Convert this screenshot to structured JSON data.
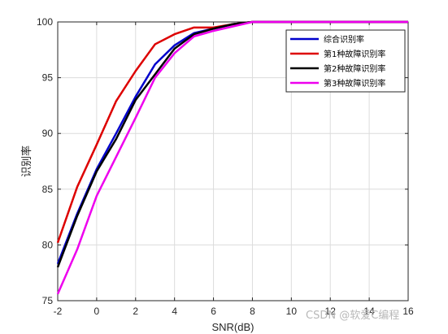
{
  "chart_data": {
    "type": "line",
    "title": "",
    "xlabel": "SNR(dB)",
    "ylabel": "识别率",
    "xlim": [
      -2,
      16
    ],
    "ylim": [
      75,
      100
    ],
    "xticks": [
      -2,
      0,
      2,
      4,
      6,
      8,
      10,
      12,
      14,
      16
    ],
    "yticks": [
      75,
      80,
      85,
      90,
      95,
      100
    ],
    "grid": true,
    "legend_position": "top-right",
    "x": [
      -2,
      -1,
      0,
      1,
      2,
      3,
      4,
      5,
      6,
      7,
      8,
      9,
      10,
      11,
      12,
      13,
      14,
      15,
      16
    ],
    "series": [
      {
        "name": "综合识别率",
        "color": "#0000cc",
        "values": [
          78.3,
          82.8,
          86.8,
          90.0,
          93.3,
          96.2,
          97.9,
          99.0,
          99.4,
          99.8,
          100,
          100,
          100,
          100,
          100,
          100,
          100,
          100,
          100
        ]
      },
      {
        "name": "第1种故障识别率",
        "color": "#dd0000",
        "values": [
          80.2,
          85.2,
          89.0,
          92.9,
          95.6,
          98.0,
          98.9,
          99.5,
          99.5,
          99.8,
          100,
          100,
          100,
          100,
          100,
          100,
          100,
          100,
          100
        ]
      },
      {
        "name": "第2种故障识别率",
        "color": "#000000",
        "values": [
          78.0,
          82.6,
          86.6,
          89.5,
          93.0,
          95.3,
          97.6,
          98.9,
          99.4,
          99.8,
          100,
          100,
          100,
          100,
          100,
          100,
          100,
          100,
          100
        ]
      },
      {
        "name": "第3种故障识别率",
        "color": "#ee00ee",
        "values": [
          75.6,
          79.6,
          84.4,
          87.9,
          91.4,
          95.0,
          97.2,
          98.7,
          99.2,
          99.6,
          100,
          100,
          100,
          100,
          100,
          100,
          100,
          100,
          100
        ]
      }
    ]
  },
  "watermark": "CSDN @软爱C编程"
}
